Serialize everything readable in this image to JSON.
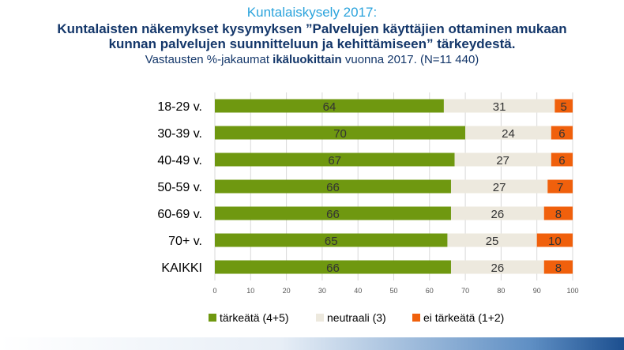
{
  "header": {
    "title": "Kuntalaiskysely 2017:",
    "subtitle_line1": "Kuntalaisten näkemykset kysymyksen ”Palvelujen käyttäjien ottaminen mukaan",
    "subtitle_line2": "kunnan palvelujen suunnitteluun ja kehittämiseen” tärkeydestä.",
    "note_pre": "Vastausten %-jakaumat ",
    "note_bold": "ikäluokittain",
    "note_post": " vuonna 2017. (N=11 440)"
  },
  "chart_data": {
    "type": "bar",
    "orientation": "horizontal",
    "stacked": true,
    "categories": [
      "18-29 v.",
      "30-39 v.",
      "40-49 v.",
      "50-59 v.",
      "60-69 v.",
      "70+ v.",
      "KAIKKI"
    ],
    "series": [
      {
        "name": "tärkeätä (4+5)",
        "color": "#6f9810",
        "values": [
          64,
          70,
          67,
          66,
          66,
          65,
          66
        ]
      },
      {
        "name": "neutraali (3)",
        "color": "#ede9de",
        "values": [
          31,
          24,
          27,
          27,
          26,
          25,
          26
        ]
      },
      {
        "name": "ei tärkeätä (1+2)",
        "color": "#f0600c",
        "values": [
          5,
          6,
          6,
          7,
          8,
          10,
          8
        ]
      }
    ],
    "xlim": [
      0,
      100
    ],
    "xticks": [
      0,
      10,
      20,
      30,
      40,
      50,
      60,
      70,
      80,
      90,
      100
    ],
    "grid": true,
    "legend": "bottom",
    "data_labels": true
  }
}
